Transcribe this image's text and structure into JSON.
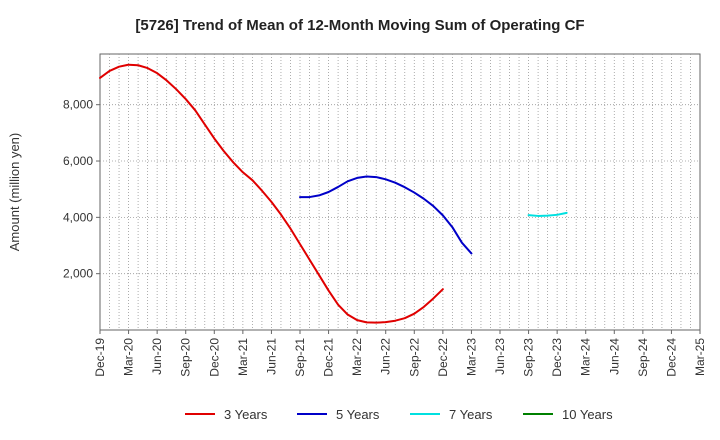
{
  "chart_data": {
    "type": "line",
    "title": "[5726]  Trend of Mean of 12-Month Moving Sum of Operating CF",
    "xlabel": "",
    "ylabel": "Amount (million yen)",
    "ylim": [
      0,
      9800
    ],
    "yticks": [
      2000,
      4000,
      6000,
      8000
    ],
    "ytick_labels": [
      "2,000",
      "4,000",
      "6,000",
      "8,000"
    ],
    "x_start": "Dec-19",
    "x_end": "Mar-25",
    "x_tick_labels": [
      "Dec-19",
      "Mar-20",
      "Jun-20",
      "Sep-20",
      "Dec-20",
      "Mar-21",
      "Jun-21",
      "Sep-21",
      "Dec-21",
      "Mar-22",
      "Jun-22",
      "Sep-22",
      "Dec-22",
      "Mar-23",
      "Jun-23",
      "Sep-23",
      "Dec-23",
      "Mar-24",
      "Jun-24",
      "Sep-24",
      "Dec-24",
      "Mar-25"
    ],
    "grid": true,
    "legend_position": "bottom",
    "series": [
      {
        "name": "3 Years",
        "color": "#e00000",
        "start": "Dec-19",
        "values": [
          8950,
          9200,
          9350,
          9420,
          9400,
          9300,
          9120,
          8860,
          8550,
          8200,
          7800,
          7300,
          6800,
          6350,
          5950,
          5600,
          5320,
          4950,
          4550,
          4100,
          3600,
          3050,
          2500,
          1950,
          1400,
          900,
          550,
          350,
          270,
          260,
          280,
          330,
          420,
          580,
          820,
          1120,
          1450
        ]
      },
      {
        "name": "5 Years",
        "color": "#0000c8",
        "start": "Sep-21",
        "values": [
          4720,
          4720,
          4780,
          4900,
          5080,
          5280,
          5400,
          5450,
          5430,
          5350,
          5230,
          5070,
          4880,
          4660,
          4400,
          4070,
          3650,
          3100,
          2720
        ]
      },
      {
        "name": "7 Years",
        "color": "#00e0e0",
        "start": "Sep-23",
        "values": [
          4080,
          4050,
          4060,
          4090,
          4160
        ]
      },
      {
        "name": "10 Years",
        "color": "#008000",
        "start": "Mar-24",
        "values": []
      }
    ]
  }
}
